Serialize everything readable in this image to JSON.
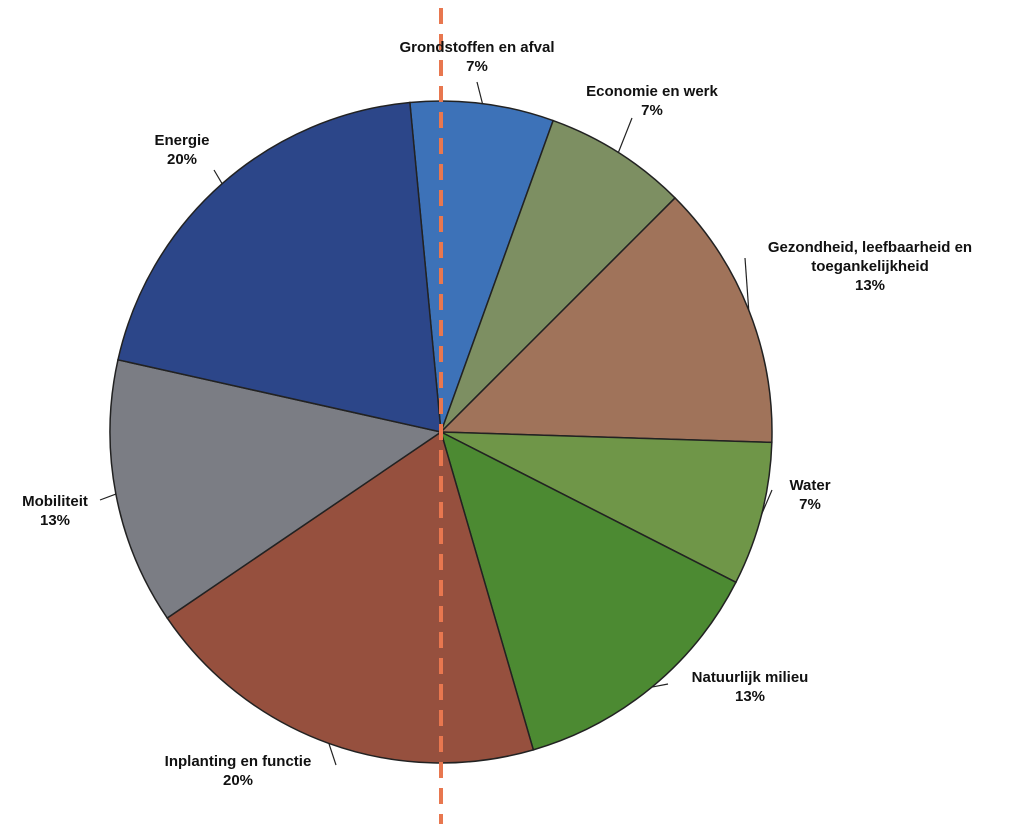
{
  "chart_data": {
    "type": "pie",
    "categories": [
      "Grondstoffen en afval",
      "Economie en werk",
      "Gezondheid, leefbaarheid en toegankelijkheid",
      "Water",
      "Natuurlijk milieu",
      "Inplanting en functie",
      "Mobiliteit",
      "Energie"
    ],
    "values": [
      7,
      7,
      13,
      7,
      13,
      20,
      13,
      20
    ],
    "value_labels": [
      "7%",
      "7%",
      "13%",
      "7%",
      "13%",
      "20%",
      "13%",
      "20%"
    ],
    "colors": [
      "#3d72b8",
      "#7d8f62",
      "#a0735a",
      "#6f9648",
      "#4c8a32",
      "#96503e",
      "#7b7d84",
      "#2c4689"
    ]
  }
}
